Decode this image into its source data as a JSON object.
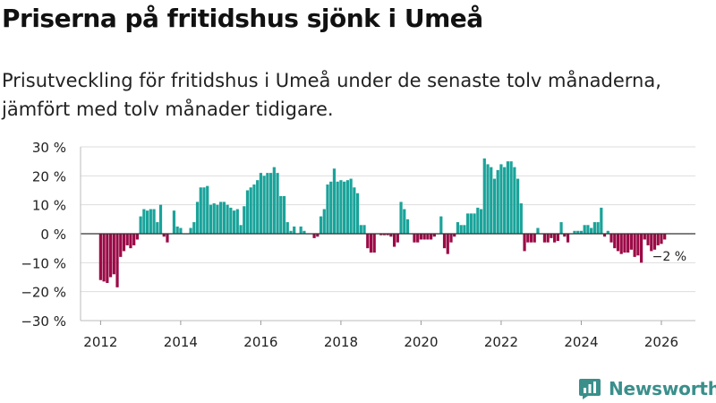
{
  "title": "Priserna på fritidshus sjönk i Umeå",
  "subtitle": "Prisutveckling för fritidshus i Umeå under de senaste tolv månaderna, jämfört med tolv månader tidigare.",
  "brand": {
    "name": "Newsworthy",
    "icon": "newsworthy-logo-icon",
    "color": "#3a8f8b"
  },
  "colors": {
    "positive": "#1aa39a",
    "negative": "#9b0a46",
    "grid": "#dddddd",
    "zero": "#333333"
  },
  "chart_data": {
    "type": "bar",
    "title": "Priserna på fritidshus sjönk i Umeå",
    "xlabel": "",
    "ylabel": "",
    "ylim": [
      -30,
      30
    ],
    "xlim": [
      2011.5,
      2026.85
    ],
    "yticks": [
      30,
      20,
      10,
      0,
      -10,
      -20,
      -30
    ],
    "ytick_labels": [
      "30 %",
      "20 %",
      "10 %",
      "0 %",
      "−10 %",
      "−20 %",
      "−30 %"
    ],
    "xticks": [
      2012,
      2014,
      2016,
      2018,
      2020,
      2022,
      2024,
      2026
    ],
    "xtick_labels": [
      "2012",
      "2014",
      "2016",
      "2018",
      "2020",
      "2022",
      "2024",
      "2026"
    ],
    "grid": true,
    "start": "2012-01",
    "frequency": "monthly",
    "unit": "%",
    "values": [
      -16,
      -16.5,
      -17,
      -15,
      -14,
      -18.5,
      -8,
      -6,
      -4,
      -5,
      -4,
      -2,
      6,
      8.5,
      8,
      8.5,
      8.5,
      4,
      10,
      -1,
      -3,
      0,
      8,
      2.5,
      2,
      0,
      0,
      2,
      4,
      11,
      16,
      16,
      16.5,
      10,
      10.5,
      10,
      11,
      11,
      10,
      9,
      8,
      8.5,
      3,
      9.5,
      15,
      16,
      17,
      18.5,
      21,
      20,
      21,
      21,
      23,
      21,
      13,
      13,
      4,
      1,
      2.5,
      0,
      2.5,
      1,
      0,
      0,
      -1.5,
      -1,
      6,
      8.5,
      17,
      18,
      22.5,
      18,
      18.5,
      18,
      18.5,
      19,
      16,
      14,
      3,
      3,
      -5,
      -6.5,
      -6.5,
      0,
      -0.5,
      -0.5,
      -0.5,
      -1,
      -4.5,
      -3,
      11,
      8.5,
      5,
      0,
      -3,
      -3,
      -2,
      -2,
      -2,
      -2,
      -1,
      0,
      6,
      -5,
      -7,
      -3,
      -1,
      4,
      3,
      3,
      7,
      7,
      7,
      9,
      8.5,
      26,
      24,
      23,
      19,
      22,
      24,
      23,
      25,
      25,
      23,
      19,
      10.5,
      -6,
      -3,
      -3,
      -3,
      2,
      0,
      -3,
      -3,
      -1.5,
      -3,
      -2.5,
      4,
      -1,
      -3,
      0,
      1,
      1,
      1,
      3,
      3,
      2,
      4,
      4,
      9,
      -1,
      1,
      -3,
      -5,
      -6,
      -7,
      -6.5,
      -6.5,
      -5.5,
      -8,
      -7.5,
      -10,
      -2,
      -4,
      -6,
      -5.5,
      -4,
      -3.5,
      -2
    ],
    "annotations": [
      {
        "text": "−2 %",
        "x": "2026-02",
        "y": -2
      }
    ]
  }
}
